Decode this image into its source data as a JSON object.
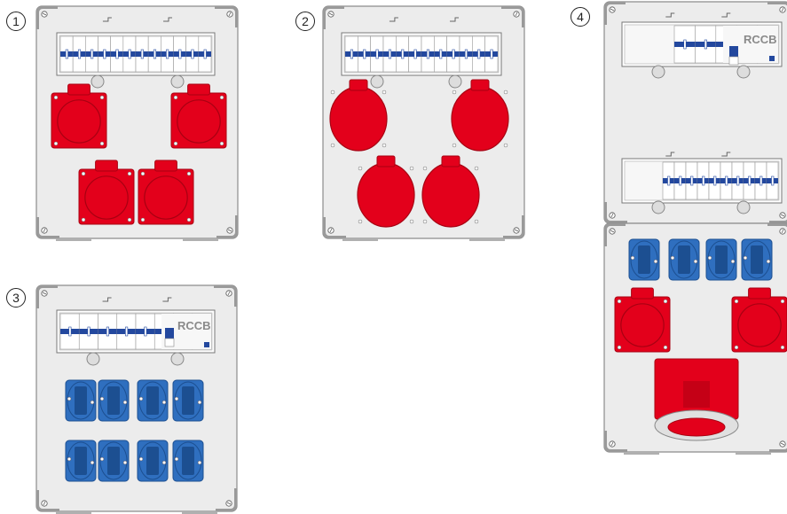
{
  "labels": {
    "n1": "1",
    "n2": "2",
    "n3": "3",
    "n4": "4",
    "rccb_3": "RCCB",
    "rccb_4": "RCCB"
  },
  "colors": {
    "housing": "#ececec",
    "housing_edge": "#8c8c8c",
    "corner": "#9a9a9a",
    "breaker_blue": "#23489e",
    "cee_red": "#e3001b",
    "cee_red_dark": "#a80012",
    "schuko_blue": "#2f6fbf",
    "schuko_blue_dark": "#1c4f91"
  },
  "icons": [
    "cee-socket-icon",
    "schuko-socket-icon",
    "mcb-breaker-icon",
    "rccb-icon",
    "cee-inlet-icon"
  ]
}
